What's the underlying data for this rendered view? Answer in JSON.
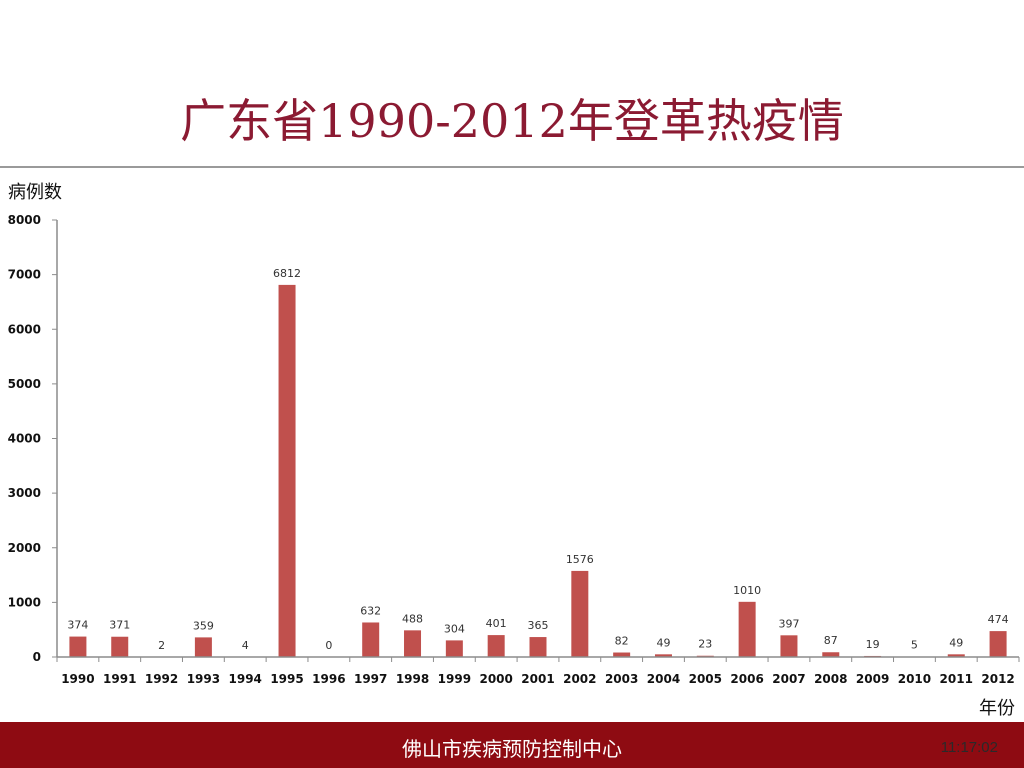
{
  "slide": {
    "title": "广东省1990-2012年登革热疫情",
    "footer_org": "佛山市疾病预防控制中心",
    "timestamp": "11:17:02"
  },
  "colors": {
    "title": "#8b1a32",
    "bar": "#c0504d",
    "footer_bg": "#8e0b12",
    "axis": "#8c8c8c"
  },
  "chart_data": {
    "type": "bar",
    "ylabel": "病例数",
    "xlabel": "年份",
    "ylim": [
      0,
      8000
    ],
    "yticks": [
      0,
      1000,
      2000,
      3000,
      4000,
      5000,
      6000,
      7000,
      8000
    ],
    "grid": false,
    "legend": "none",
    "categories": [
      "1990",
      "1991",
      "1992",
      "1993",
      "1994",
      "1995",
      "1996",
      "1997",
      "1998",
      "1999",
      "2000",
      "2001",
      "2002",
      "2003",
      "2004",
      "2005",
      "2006",
      "2007",
      "2008",
      "2009",
      "2010",
      "2011",
      "2012"
    ],
    "values": [
      374,
      371,
      2,
      359,
      4,
      6812,
      0,
      632,
      488,
      304,
      401,
      365,
      1576,
      82,
      49,
      23,
      1010,
      397,
      87,
      19,
      5,
      49,
      474
    ]
  }
}
